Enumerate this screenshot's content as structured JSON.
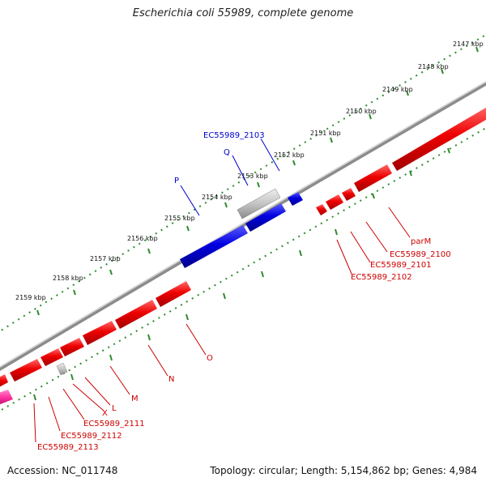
{
  "title": "Escherichia coli 55989, complete genome",
  "footer": {
    "accession": "Accession: NC_011748",
    "topology": "Topology: circular; Length: 5,154,862 bp; Genes: 4,984"
  },
  "colors": {
    "forward_gene": "#e00000",
    "reverse_gene": "#0000dd",
    "pseudo_gene": "#bbbbbb",
    "rna_gene": "#ff2f9f",
    "backbone": "#8c8c8c",
    "tick_dots": "#2e8b2e",
    "label_red": "#cc0000",
    "label_blue": "#0000cc"
  },
  "ticks": [
    "2147 kbp",
    "2148 kbp",
    "2149 kbp",
    "2150 kbp",
    "2151 kbp",
    "2152 kbp",
    "2153 kbp",
    "2154 kbp",
    "2155 kbp",
    "2156 kbp",
    "2157 kbp",
    "2158 kbp",
    "2159 kbp"
  ],
  "labels": {
    "blue": [
      "EC55989_2103",
      "Q",
      "P"
    ],
    "red": [
      "parM",
      "EC55989_2100",
      "EC55989_2101",
      "EC55989_2102",
      "O",
      "N",
      "M",
      "L",
      "X",
      "EC55989_2111",
      "EC55989_2112",
      "EC55989_2113"
    ]
  }
}
